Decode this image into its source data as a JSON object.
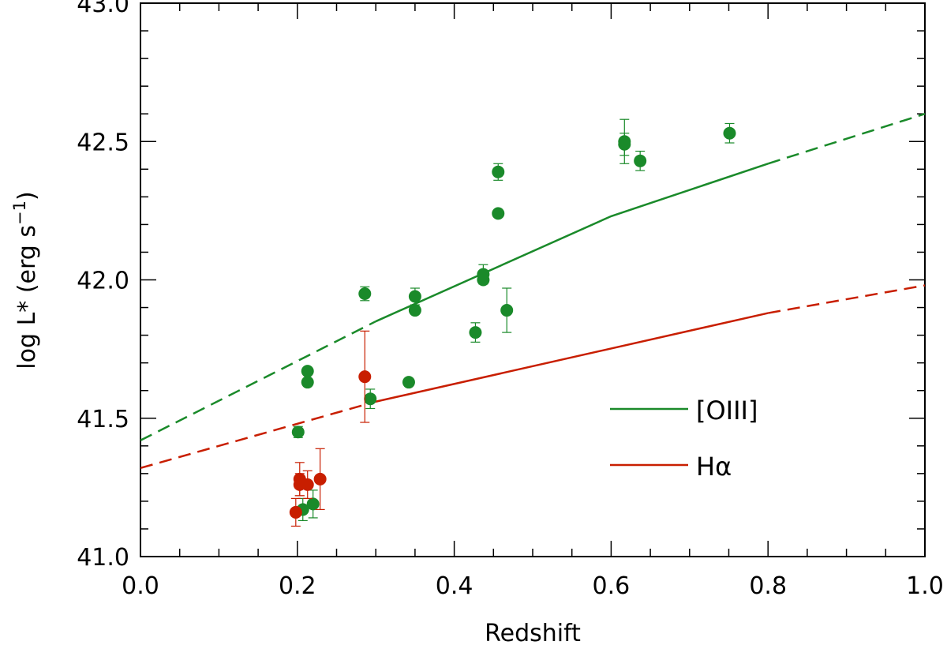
{
  "chart_data": {
    "type": "scatter",
    "title": "",
    "xlabel": "Redshift",
    "ylabel_main": "log L* (erg s",
    "ylabel_sup": "−1",
    "ylabel_close": ")",
    "xlim": [
      0.0,
      1.0
    ],
    "ylim": [
      41.0,
      43.0
    ],
    "x_ticks": [
      0.0,
      0.2,
      0.4,
      0.6,
      0.8,
      1.0
    ],
    "x_tick_labels": [
      "0.0",
      "0.2",
      "0.4",
      "0.6",
      "0.8",
      "1.0"
    ],
    "x_minor_step": 0.05,
    "y_ticks": [
      41.0,
      41.5,
      42.0,
      42.5,
      43.0
    ],
    "y_tick_labels": [
      "41.0",
      "41.5",
      "42.0",
      "42.5",
      "43.0"
    ],
    "y_minor_step": 0.1,
    "grid": false,
    "legend_position": "center-right",
    "colors": {
      "oiii": "#1a8a2a",
      "halpha": "#c81e00",
      "axis": "#000000"
    },
    "legend": [
      {
        "key": "oiii",
        "label": "[OIII]"
      },
      {
        "key": "halpha",
        "label": "Hα"
      }
    ],
    "lines": [
      {
        "name": "[OIII] fit",
        "color_key": "oiii",
        "dashed_x": [
          0.0,
          0.3
        ],
        "solid_x": [
          0.3,
          0.8
        ],
        "dashed_x2": [
          0.8,
          1.0
        ],
        "x": [
          0.0,
          0.3,
          0.6,
          0.8,
          1.0
        ],
        "y": [
          41.42,
          41.85,
          42.23,
          42.42,
          42.6
        ]
      },
      {
        "name": "Hα fit",
        "color_key": "halpha",
        "dashed_x": [
          0.0,
          0.3
        ],
        "solid_x": [
          0.3,
          0.8
        ],
        "dashed_x2": [
          0.8,
          1.0
        ],
        "x": [
          0.0,
          0.3,
          0.8,
          1.0
        ],
        "y": [
          41.32,
          41.56,
          41.88,
          41.98
        ]
      }
    ],
    "series": [
      {
        "name": "[OIII]",
        "color_key": "oiii",
        "points": [
          {
            "x": 0.201,
            "y": 41.45,
            "err": 0.02
          },
          {
            "x": 0.207,
            "y": 41.17,
            "err": 0.04
          },
          {
            "x": 0.213,
            "y": 41.67,
            "err": 0.0
          },
          {
            "x": 0.213,
            "y": 41.63,
            "err": 0.0
          },
          {
            "x": 0.22,
            "y": 41.19,
            "err": 0.05
          },
          {
            "x": 0.286,
            "y": 41.95,
            "err": 0.025
          },
          {
            "x": 0.293,
            "y": 41.57,
            "err": 0.035
          },
          {
            "x": 0.342,
            "y": 41.63,
            "err": 0.0
          },
          {
            "x": 0.35,
            "y": 41.94,
            "err": 0.03
          },
          {
            "x": 0.35,
            "y": 41.89,
            "err": 0.0
          },
          {
            "x": 0.427,
            "y": 41.81,
            "err": 0.035
          },
          {
            "x": 0.437,
            "y": 42.02,
            "err": 0.035
          },
          {
            "x": 0.437,
            "y": 42.0,
            "err": 0.0
          },
          {
            "x": 0.456,
            "y": 42.39,
            "err": 0.03
          },
          {
            "x": 0.456,
            "y": 42.24,
            "err": 0.0
          },
          {
            "x": 0.467,
            "y": 41.89,
            "err": 0.08
          },
          {
            "x": 0.617,
            "y": 42.5,
            "err": 0.08
          },
          {
            "x": 0.617,
            "y": 42.49,
            "err": 0.04
          },
          {
            "x": 0.637,
            "y": 42.43,
            "err": 0.035
          },
          {
            "x": 0.751,
            "y": 42.53,
            "err": 0.035
          }
        ]
      },
      {
        "name": "Hα",
        "color_key": "halpha",
        "points": [
          {
            "x": 0.198,
            "y": 41.16,
            "err": 0.05
          },
          {
            "x": 0.203,
            "y": 41.28,
            "err": 0.06
          },
          {
            "x": 0.203,
            "y": 41.26,
            "err": 0.04
          },
          {
            "x": 0.213,
            "y": 41.26,
            "err": 0.05
          },
          {
            "x": 0.229,
            "y": 41.28,
            "err": 0.11
          },
          {
            "x": 0.286,
            "y": 41.65,
            "err": 0.165
          }
        ]
      }
    ]
  }
}
